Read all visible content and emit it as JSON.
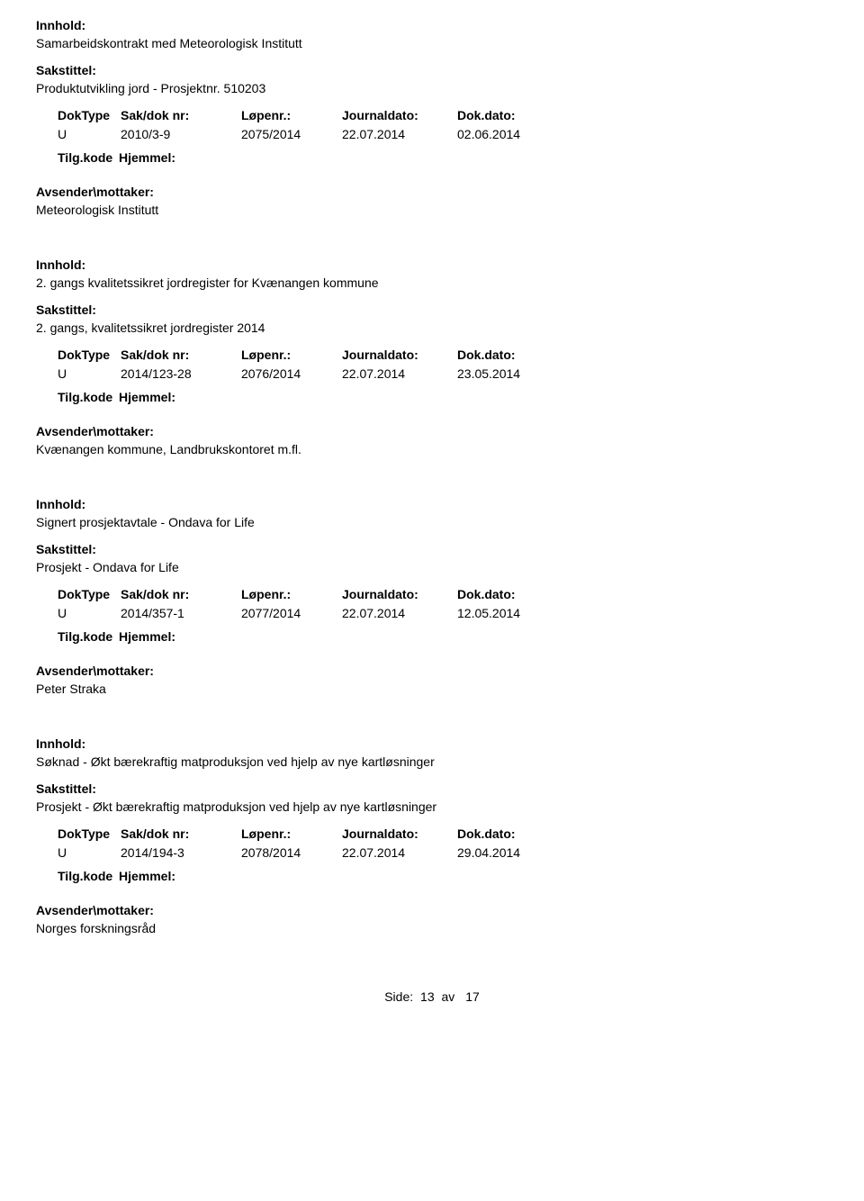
{
  "labels": {
    "innhold": "Innhold:",
    "sakstittel": "Sakstittel:",
    "doktype": "DokType",
    "saknr": "Sak/dok nr:",
    "lopenr": "Løpenr.:",
    "journaldato": "Journaldato:",
    "dokdato": "Dok.dato:",
    "tilgkode": "Tilg.kode",
    "hjemmel": "Hjemmel:",
    "avsender": "Avsender\\mottaker:",
    "side": "Side:",
    "av": "av"
  },
  "records": [
    {
      "innhold": "Samarbeidskontrakt med Meteorologisk Institutt",
      "sakstittel": "Produktutvikling jord - Prosjektnr. 510203",
      "doktype": "U",
      "saknr": "2010/3-9",
      "lopenr": "2075/2014",
      "journaldato": "22.07.2014",
      "dokdato": "02.06.2014",
      "avsender": "Meteorologisk Institutt"
    },
    {
      "innhold": "2. gangs kvalitetssikret jordregister for Kvænangen kommune",
      "sakstittel": "2. gangs, kvalitetssikret jordregister 2014",
      "doktype": "U",
      "saknr": "2014/123-28",
      "lopenr": "2076/2014",
      "journaldato": "22.07.2014",
      "dokdato": "23.05.2014",
      "avsender": "Kvænangen kommune, Landbrukskontoret m.fl."
    },
    {
      "innhold": "Signert prosjektavtale - Ondava for Life",
      "sakstittel": "Prosjekt - Ondava for Life",
      "doktype": "U",
      "saknr": "2014/357-1",
      "lopenr": "2077/2014",
      "journaldato": "22.07.2014",
      "dokdato": "12.05.2014",
      "avsender": "Peter Straka"
    },
    {
      "innhold": "Søknad - Økt bærekraftig matproduksjon ved hjelp av nye kartløsninger",
      "sakstittel": "Prosjekt - Økt bærekraftig matproduksjon ved hjelp av nye kartløsninger",
      "doktype": "U",
      "saknr": "2014/194-3",
      "lopenr": "2078/2014",
      "journaldato": "22.07.2014",
      "dokdato": "29.04.2014",
      "avsender": "Norges forskningsråd"
    }
  ],
  "footer": {
    "page": "13",
    "total": "17"
  }
}
